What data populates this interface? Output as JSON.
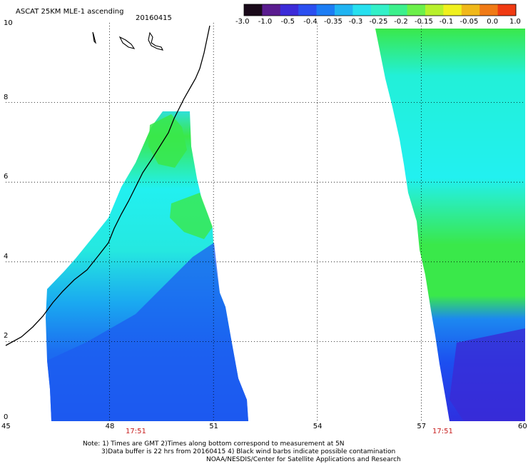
{
  "header": {
    "title": "ASCAT 25KM MLE-1 ascending",
    "date": "20160415"
  },
  "colorbar": {
    "tick_labels": [
      "-3.0",
      "-1.0",
      "-0.5",
      "-0.4",
      "-0.35",
      "-0.3",
      "-0.25",
      "-0.2",
      "-0.15",
      "-0.1",
      "-0.05",
      "0.0",
      "1.0"
    ],
    "colors": [
      "#1a0a1a",
      "#5a1c8f",
      "#3c2bd8",
      "#2b4ff0",
      "#1c7df4",
      "#20b4f2",
      "#27e0ef",
      "#33f0c8",
      "#3cf08c",
      "#6cf04a",
      "#b8f02c",
      "#f0f01e",
      "#f0b81a",
      "#f07a16",
      "#f03a12"
    ]
  },
  "map": {
    "x_axis": {
      "ticks": [
        "45",
        "48",
        "51",
        "54",
        "57",
        "60"
      ],
      "range": [
        45,
        60
      ]
    },
    "y_axis": {
      "ticks": [
        "0",
        "2",
        "4",
        "6",
        "8",
        "10"
      ],
      "range": [
        0,
        10
      ]
    },
    "swath_times": [
      "17:51",
      "17:51"
    ],
    "colors": {
      "low": "#1c5cf0",
      "mid_low": "#1a9ff0",
      "cyan": "#22f0f0",
      "green": "#3ae84a",
      "deep": "#3a2ad6",
      "coastline": "#000000",
      "gridline": "#000000"
    }
  },
  "footer": {
    "note_line_1": "Note: 1) Times are GMT  2)Times along bottom correspond to measurement at 5N",
    "note_line_2": "3)Data buffer is 22 hrs from 20160415  4) Black wind barbs indicate possible contamination",
    "note_line_3": "NOAA/NESDIS/Center for Satellite Applications and Research"
  }
}
